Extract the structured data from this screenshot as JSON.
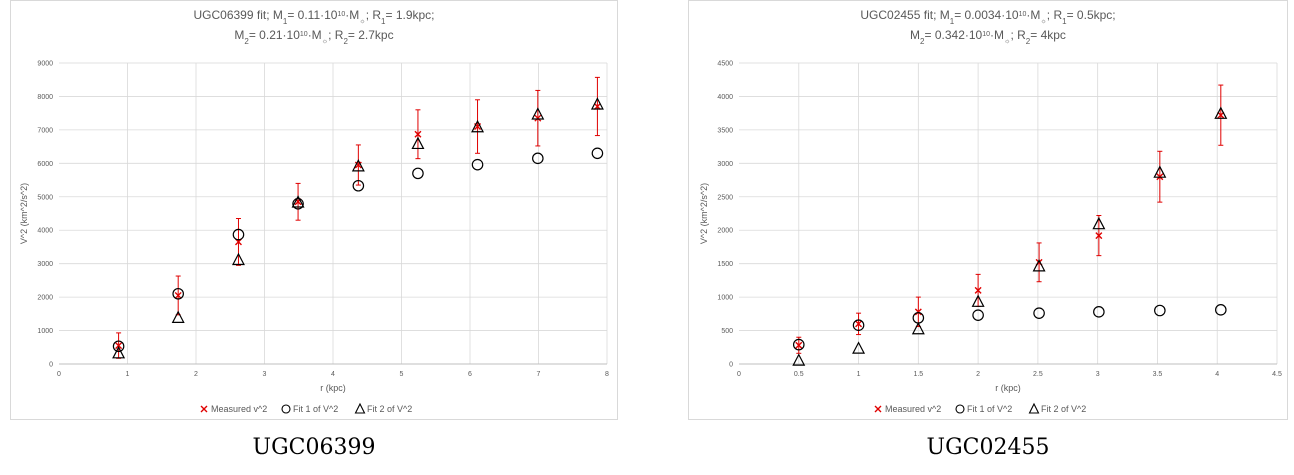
{
  "captions": [
    "UGC06399",
    "UGC02455"
  ],
  "legend": {
    "measured": "Measured v^2",
    "fit1": "Fit 1 of V^2",
    "fit2": "Fit 2 of V^2"
  },
  "colors": {
    "measured": "#e00000",
    "fit": "#000000",
    "grid": "#d9d9d9",
    "text": "#595959"
  },
  "chart_data": [
    {
      "type": "scatter",
      "title_line1": {
        "pre": "UGC06399 fit; M",
        "s1": "1",
        "mid1": "= 0.11·10",
        "sup1": "10",
        "mid2": "·M",
        "sun": "☼",
        "mid3": "; R",
        "s2": "1",
        "post": "= 1.9kpc;"
      },
      "title_line2": {
        "pre": "M",
        "s1": "2",
        "mid1": "= 0.21·10",
        "sup1": "10",
        "mid2": "·M",
        "sun": "☼",
        "mid3": "; R",
        "s2": "2",
        "post": "= 2.7kpc"
      },
      "xlabel": "r (kpc)",
      "ylabel": "V^2 (km^2/s^2)",
      "xlim": [
        0,
        8
      ],
      "ylim": [
        0,
        9000
      ],
      "xticks": [
        "0",
        "1",
        "2",
        "3",
        "4",
        "5",
        "6",
        "7",
        "8"
      ],
      "yticks": [
        "0",
        "1000",
        "2000",
        "3000",
        "4000",
        "5000",
        "6000",
        "7000",
        "8000",
        "9000"
      ],
      "series": [
        {
          "name": "Measured v^2",
          "marker": "x",
          "x": [
            0.87,
            1.74,
            2.62,
            3.49,
            4.37,
            5.24,
            6.11,
            6.99,
            7.86
          ],
          "y": [
            550,
            2050,
            3650,
            4850,
            5950,
            6870,
            7100,
            7350,
            7700
          ],
          "err": [
            380,
            580,
            700,
            550,
            600,
            730,
            800,
            830,
            870
          ]
        },
        {
          "name": "Fit 1 of V^2",
          "marker": "circle",
          "x": [
            0.87,
            1.74,
            2.62,
            3.49,
            4.37,
            5.24,
            6.11,
            6.99,
            7.86
          ],
          "y": [
            530,
            2100,
            3870,
            4790,
            5330,
            5700,
            5960,
            6150,
            6300
          ]
        },
        {
          "name": "Fit 2 of V^2",
          "marker": "triangle",
          "x": [
            0.87,
            1.74,
            2.62,
            3.49,
            4.37,
            5.24,
            6.11,
            6.99,
            7.86
          ],
          "y": [
            320,
            1380,
            3110,
            4830,
            5910,
            6580,
            7080,
            7460,
            7760
          ]
        }
      ]
    },
    {
      "type": "scatter",
      "title_line1": {
        "pre": "UGC02455 fit; M",
        "s1": "1",
        "mid1": "= 0.0034·10",
        "sup1": "10",
        "mid2": "·M",
        "sun": "☼",
        "mid3": "; R",
        "s2": "1",
        "post": "= 0.5kpc;"
      },
      "title_line2": {
        "pre": "M",
        "s1": "2",
        "mid1": "= 0.342·10",
        "sup1": "10",
        "mid2": "·M",
        "sun": "☼",
        "mid3": "; R",
        "s2": "2",
        "post": "= 4kpc"
      },
      "xlabel": "r (kpc)",
      "ylabel": "V^2 (km^2/s^2)",
      "xlim": [
        0,
        4.5
      ],
      "ylim": [
        0,
        4500
      ],
      "xticks": [
        "0",
        "0.5",
        "1",
        "1.5",
        "2",
        "2.5",
        "3",
        "3.5",
        "4",
        "4.5"
      ],
      "yticks": [
        "0",
        "500",
        "1000",
        "1500",
        "2000",
        "2500",
        "3000",
        "3500",
        "4000",
        "4500"
      ],
      "series": [
        {
          "name": "Measured v^2",
          "marker": "x",
          "x": [
            0.5,
            1.0,
            1.5,
            2.0,
            2.51,
            3.01,
            3.52,
            4.03
          ],
          "y": [
            280,
            600,
            780,
            1100,
            1520,
            1920,
            2800,
            3720
          ],
          "err": [
            120,
            160,
            220,
            240,
            290,
            300,
            380,
            450
          ]
        },
        {
          "name": "Fit 1 of V^2",
          "marker": "circle",
          "x": [
            0.5,
            1.0,
            1.5,
            2.0,
            2.51,
            3.01,
            3.52,
            4.03
          ],
          "y": [
            290,
            580,
            690,
            730,
            760,
            780,
            800,
            810
          ]
        },
        {
          "name": "Fit 2 of V^2",
          "marker": "triangle",
          "x": [
            0.5,
            1.0,
            1.5,
            2.0,
            2.51,
            3.01,
            3.52,
            4.03
          ],
          "y": [
            50,
            230,
            520,
            930,
            1460,
            2090,
            2860,
            3740
          ]
        }
      ]
    }
  ]
}
